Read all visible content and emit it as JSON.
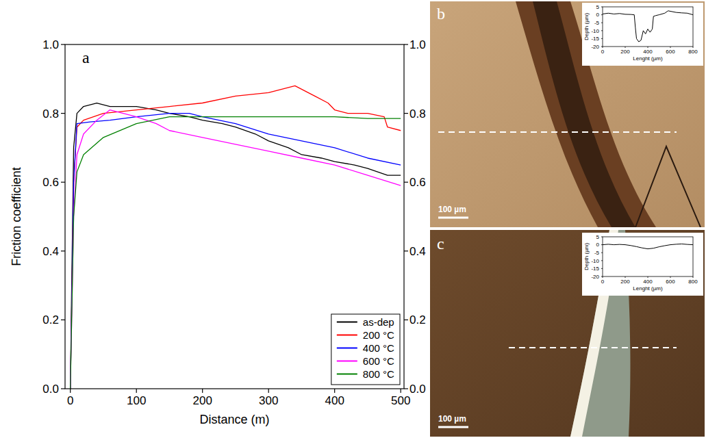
{
  "chart_data": [
    {
      "type": "line",
      "label": "a",
      "xlabel": "Distance (m)",
      "ylabel": "Friction coefficient",
      "xlim": [
        -8,
        505
      ],
      "xticks": [
        0,
        100,
        200,
        300,
        400,
        500
      ],
      "ylim": [
        0,
        1
      ],
      "yticks": [
        {
          "value": 0,
          "label": "0.0"
        },
        {
          "value": 0.2,
          "label": "0.2"
        },
        {
          "value": 0.4,
          "label": "0.4"
        },
        {
          "value": 0.6,
          "label": "0.6"
        },
        {
          "value": 0.8,
          "label": "0.8"
        },
        {
          "value": 1,
          "label": "1.0"
        }
      ],
      "y2lim": [
        0,
        1
      ],
      "y2ticks": [
        {
          "value": 0,
          "label": "0.0"
        },
        {
          "value": 0.2,
          "label": "0.2"
        },
        {
          "value": 0.4,
          "label": "0.4"
        },
        {
          "value": 0.6,
          "label": "0.6"
        },
        {
          "value": 0.8,
          "label": "0.8"
        },
        {
          "value": 1,
          "label": "1.0"
        }
      ],
      "grid": false,
      "legend": "lower right",
      "series": [
        {
          "name": "as-dep",
          "color": "#000000",
          "x": [
            0,
            2,
            5,
            10,
            20,
            40,
            60,
            80,
            100,
            130,
            150,
            180,
            200,
            230,
            250,
            280,
            300,
            330,
            350,
            380,
            400,
            430,
            450,
            480,
            500
          ],
          "values": [
            0,
            0.3,
            0.7,
            0.8,
            0.82,
            0.83,
            0.82,
            0.82,
            0.82,
            0.81,
            0.8,
            0.79,
            0.78,
            0.77,
            0.76,
            0.74,
            0.72,
            0.7,
            0.68,
            0.67,
            0.66,
            0.65,
            0.64,
            0.62,
            0.62
          ]
        },
        {
          "name": "200 °C",
          "color": "#ff0000",
          "x": [
            0,
            5,
            10,
            20,
            50,
            100,
            150,
            200,
            250,
            300,
            340,
            370,
            390,
            400,
            420,
            450,
            475,
            480,
            500
          ],
          "values": [
            0,
            0.6,
            0.76,
            0.78,
            0.8,
            0.81,
            0.82,
            0.83,
            0.85,
            0.86,
            0.88,
            0.85,
            0.83,
            0.81,
            0.8,
            0.8,
            0.79,
            0.76,
            0.75
          ]
        },
        {
          "name": "400 °C",
          "color": "#0000ff",
          "x": [
            0,
            5,
            10,
            30,
            60,
            100,
            150,
            180,
            200,
            250,
            300,
            350,
            400,
            450,
            500
          ],
          "values": [
            0,
            0.6,
            0.77,
            0.775,
            0.78,
            0.79,
            0.8,
            0.8,
            0.79,
            0.77,
            0.74,
            0.72,
            0.7,
            0.67,
            0.65
          ]
        },
        {
          "name": "600 °C",
          "color": "#ff00ff",
          "x": [
            0,
            5,
            10,
            20,
            40,
            60,
            100,
            130,
            150,
            200,
            250,
            300,
            350,
            400,
            450,
            500
          ],
          "values": [
            0,
            0.5,
            0.68,
            0.74,
            0.78,
            0.81,
            0.79,
            0.77,
            0.75,
            0.73,
            0.71,
            0.69,
            0.67,
            0.65,
            0.62,
            0.59
          ]
        },
        {
          "name": "800 °C",
          "color": "#008000",
          "x": [
            0,
            5,
            10,
            20,
            50,
            100,
            150,
            200,
            250,
            300,
            350,
            400,
            450,
            500
          ],
          "values": [
            0,
            0.5,
            0.63,
            0.68,
            0.73,
            0.77,
            0.79,
            0.79,
            0.79,
            0.79,
            0.79,
            0.79,
            0.785,
            0.785
          ]
        }
      ]
    },
    {
      "type": "line",
      "label": "b",
      "annotations": [
        "100 µm"
      ],
      "xlabel": "Lenght (µm)",
      "ylabel": "Depth (µm)",
      "xlim": [
        0,
        800
      ],
      "xticks": [
        0,
        200,
        400,
        600,
        800
      ],
      "ylim": [
        -20,
        5
      ],
      "yticks": [
        -20,
        -15,
        -10,
        -5,
        0,
        5
      ],
      "color": "#000000",
      "x": [
        0,
        50,
        100,
        150,
        200,
        250,
        280,
        290,
        300,
        320,
        340,
        360,
        380,
        400,
        420,
        440,
        450,
        470,
        500,
        550,
        580,
        650,
        700,
        750,
        800
      ],
      "values": [
        0.5,
        1,
        0.5,
        0.8,
        0.3,
        0.2,
        0,
        -8,
        -15,
        -17,
        -16,
        -10,
        -12,
        -9,
        -11,
        -9,
        -1,
        -0.5,
        0,
        1,
        2.5,
        1.5,
        1.2,
        1,
        0
      ]
    },
    {
      "type": "line",
      "label": "c",
      "annotations": [
        "100 µm"
      ],
      "xlabel": "Lenght (µm)",
      "ylabel": "Depth (µm)",
      "xlim": [
        0,
        800
      ],
      "xticks": [
        0,
        200,
        400,
        600,
        800
      ],
      "ylim": [
        -20,
        5
      ],
      "yticks": [
        -20,
        -15,
        -10,
        -5,
        0,
        5
      ],
      "color": "#000000",
      "x": [
        0,
        50,
        100,
        150,
        200,
        250,
        300,
        350,
        400,
        450,
        500,
        550,
        600,
        650,
        700,
        750,
        800
      ],
      "values": [
        0,
        0.3,
        0,
        0.2,
        0,
        -0.5,
        -1.2,
        -2,
        -2.6,
        -2.2,
        -1.3,
        -0.6,
        0,
        0.3,
        0.5,
        0.2,
        0
      ]
    }
  ]
}
